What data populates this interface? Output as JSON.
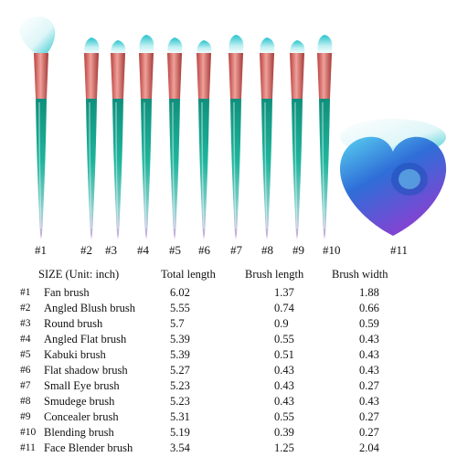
{
  "brush_labels": [
    "#1",
    "#2",
    "#3",
    "#4",
    "#5",
    "#6",
    "#7",
    "#8",
    "#9",
    "#10",
    "#11"
  ],
  "table": {
    "header": {
      "title": "SIZE (Unit: inch)",
      "total_length": "Total length",
      "brush_length": "Brush length",
      "brush_width": "Brush width"
    },
    "rows": [
      {
        "num": "#1",
        "name": "Fan brush",
        "total": "6.02",
        "brush_length": "1.37",
        "brush_width": "1.88"
      },
      {
        "num": "#2",
        "name": "Angled Blush brush",
        "total": "5.55",
        "brush_length": "0.74",
        "brush_width": "0.66"
      },
      {
        "num": "#3",
        "name": "Round brush",
        "total": "5.7",
        "brush_length": "0.9",
        "brush_width": "0.59"
      },
      {
        "num": "#4",
        "name": "Angled Flat brush",
        "total": "5.39",
        "brush_length": "0.55",
        "brush_width": "0.43"
      },
      {
        "num": "#5",
        "name": "Kabuki brush",
        "total": "5.39",
        "brush_length": "0.51",
        "brush_width": "0.43"
      },
      {
        "num": "#6",
        "name": "Flat shadow brush",
        "total": "5.27",
        "brush_length": "0.43",
        "brush_width": "0.43"
      },
      {
        "num": "#7",
        "name": "Small Eye brush",
        "total": "5.23",
        "brush_length": "0.43",
        "brush_width": "0.27"
      },
      {
        "num": "#8",
        "name": "Smudege brush",
        "total": "5.23",
        "brush_length": "0.43",
        "brush_width": "0.43"
      },
      {
        "num": "#9",
        "name": "Concealer brush",
        "total": "5.31",
        "brush_length": "0.55",
        "brush_width": "0.27"
      },
      {
        "num": "#10",
        "name": "Blending brush",
        "total": "5.19",
        "brush_length": "0.39",
        "brush_width": "0.27"
      },
      {
        "num": "#11",
        "name": "Face Blender brush",
        "total": "3.54",
        "brush_length": "1.25",
        "brush_width": "2.04"
      }
    ]
  },
  "colors": {
    "bristle_tip": "#2cc7cf",
    "bristle_white": "#f4fbfc",
    "ferrule": "#d0605e",
    "handle_top": "#17a58e",
    "handle_bottom": "#c9a3d8",
    "heart_blue": "#2f6ed8",
    "heart_purple": "#7a3fd1"
  }
}
